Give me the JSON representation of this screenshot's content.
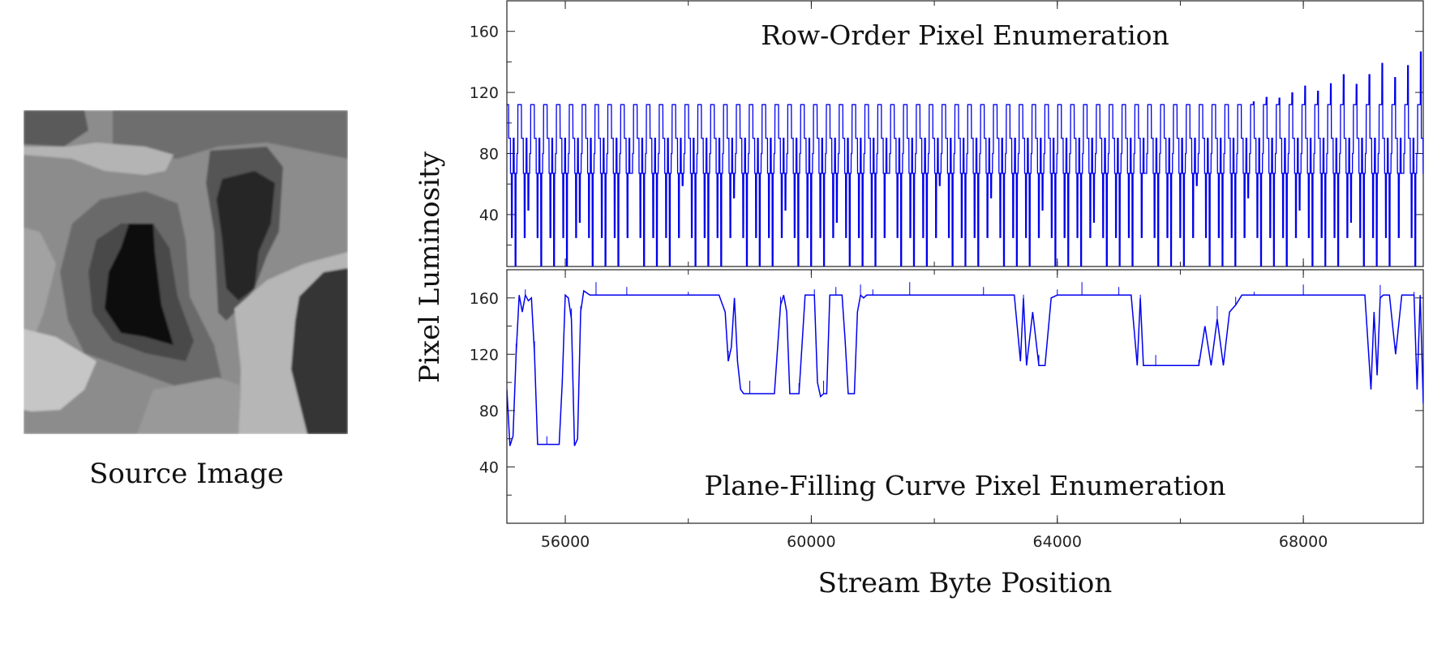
{
  "source_image": {
    "caption": "Source Image"
  },
  "chart_data": [
    {
      "type": "line",
      "title": "Row-Order Pixel Enumeration",
      "xlabel": "Stream Byte Position",
      "ylabel": "Pixel Luminosity",
      "xlim": [
        55050,
        69950
      ],
      "ylim": [
        6,
        180
      ],
      "x_ticks": [
        56000,
        60000,
        64000,
        68000
      ],
      "y_ticks": [
        40,
        80,
        120,
        160
      ],
      "line_color": "#0000ee",
      "pattern": {
        "period": 209,
        "levels": [
          112,
          112,
          90,
          90,
          67,
          25,
          67,
          90,
          67,
          6,
          67,
          80,
          112,
          112
        ],
        "growing_spikes_after": 67000,
        "max_spike": 147
      }
    },
    {
      "type": "line",
      "title": "Plane-Filling Curve Pixel Enumeration",
      "xlabel": "Stream Byte Position",
      "ylabel": "Pixel Luminosity",
      "xlim": [
        55050,
        69950
      ],
      "ylim": [
        0,
        180
      ],
      "x_ticks": [
        56000,
        60000,
        64000,
        68000
      ],
      "y_ticks": [
        40,
        80,
        120,
        160
      ],
      "line_color": "#0000ee",
      "series": [
        {
          "x": [
            55050,
            55100,
            55150,
            55200,
            55250,
            55300,
            55350,
            55400,
            55450,
            55500,
            55550,
            55600,
            55700,
            55800,
            55900,
            55950,
            56000,
            56050,
            56100,
            56150,
            56200,
            56250,
            56300,
            56400,
            56500,
            56600,
            56700,
            57000,
            57100,
            57300,
            58000,
            58500,
            58600,
            58650,
            58700,
            58750,
            58800,
            58850,
            58900,
            59000,
            59200,
            59400,
            59500,
            59550,
            59600,
            59650,
            59700,
            59750,
            59800,
            59900,
            60000,
            60050,
            60100,
            60150,
            60200,
            60250,
            60300,
            60400,
            60500,
            60550,
            60600,
            60700,
            60750,
            60800,
            60850,
            60900,
            61000,
            61100,
            61200,
            61600,
            62000,
            62400,
            62800,
            63300,
            63400,
            63450,
            63500,
            63600,
            63700,
            63800,
            63900,
            64000,
            64200,
            64300,
            64400,
            64500,
            64600,
            65000,
            65200,
            65300,
            65350,
            65400,
            65500,
            65600,
            65700,
            66000,
            66300,
            66400,
            66500,
            66600,
            66700,
            66800,
            66900,
            67000,
            67100,
            67200,
            67300,
            67500,
            68000,
            68500,
            69000,
            69100,
            69150,
            69200,
            69250,
            69300,
            69400,
            69500,
            69600,
            69700,
            69800,
            69850,
            69900,
            69950
          ],
          "y": [
            95,
            55,
            62,
            120,
            162,
            150,
            162,
            158,
            160,
            120,
            56,
            56,
            56,
            56,
            56,
            100,
            162,
            160,
            145,
            55,
            60,
            150,
            165,
            162,
            162,
            162,
            162,
            162,
            162,
            162,
            162,
            162,
            150,
            115,
            125,
            160,
            115,
            95,
            92,
            92,
            92,
            92,
            155,
            162,
            150,
            92,
            92,
            92,
            92,
            162,
            162,
            162,
            100,
            90,
            92,
            92,
            162,
            162,
            162,
            130,
            92,
            92,
            150,
            162,
            160,
            162,
            162,
            162,
            162,
            162,
            162,
            162,
            162,
            162,
            115,
            160,
            112,
            150,
            112,
            112,
            160,
            162,
            162,
            162,
            162,
            162,
            162,
            162,
            162,
            112,
            160,
            112,
            112,
            112,
            112,
            112,
            112,
            140,
            112,
            145,
            112,
            150,
            155,
            162,
            162,
            162,
            162,
            162,
            162,
            162,
            162,
            95,
            150,
            105,
            160,
            162,
            162,
            120,
            162,
            162,
            162,
            95,
            162,
            85
          ]
        }
      ]
    }
  ]
}
